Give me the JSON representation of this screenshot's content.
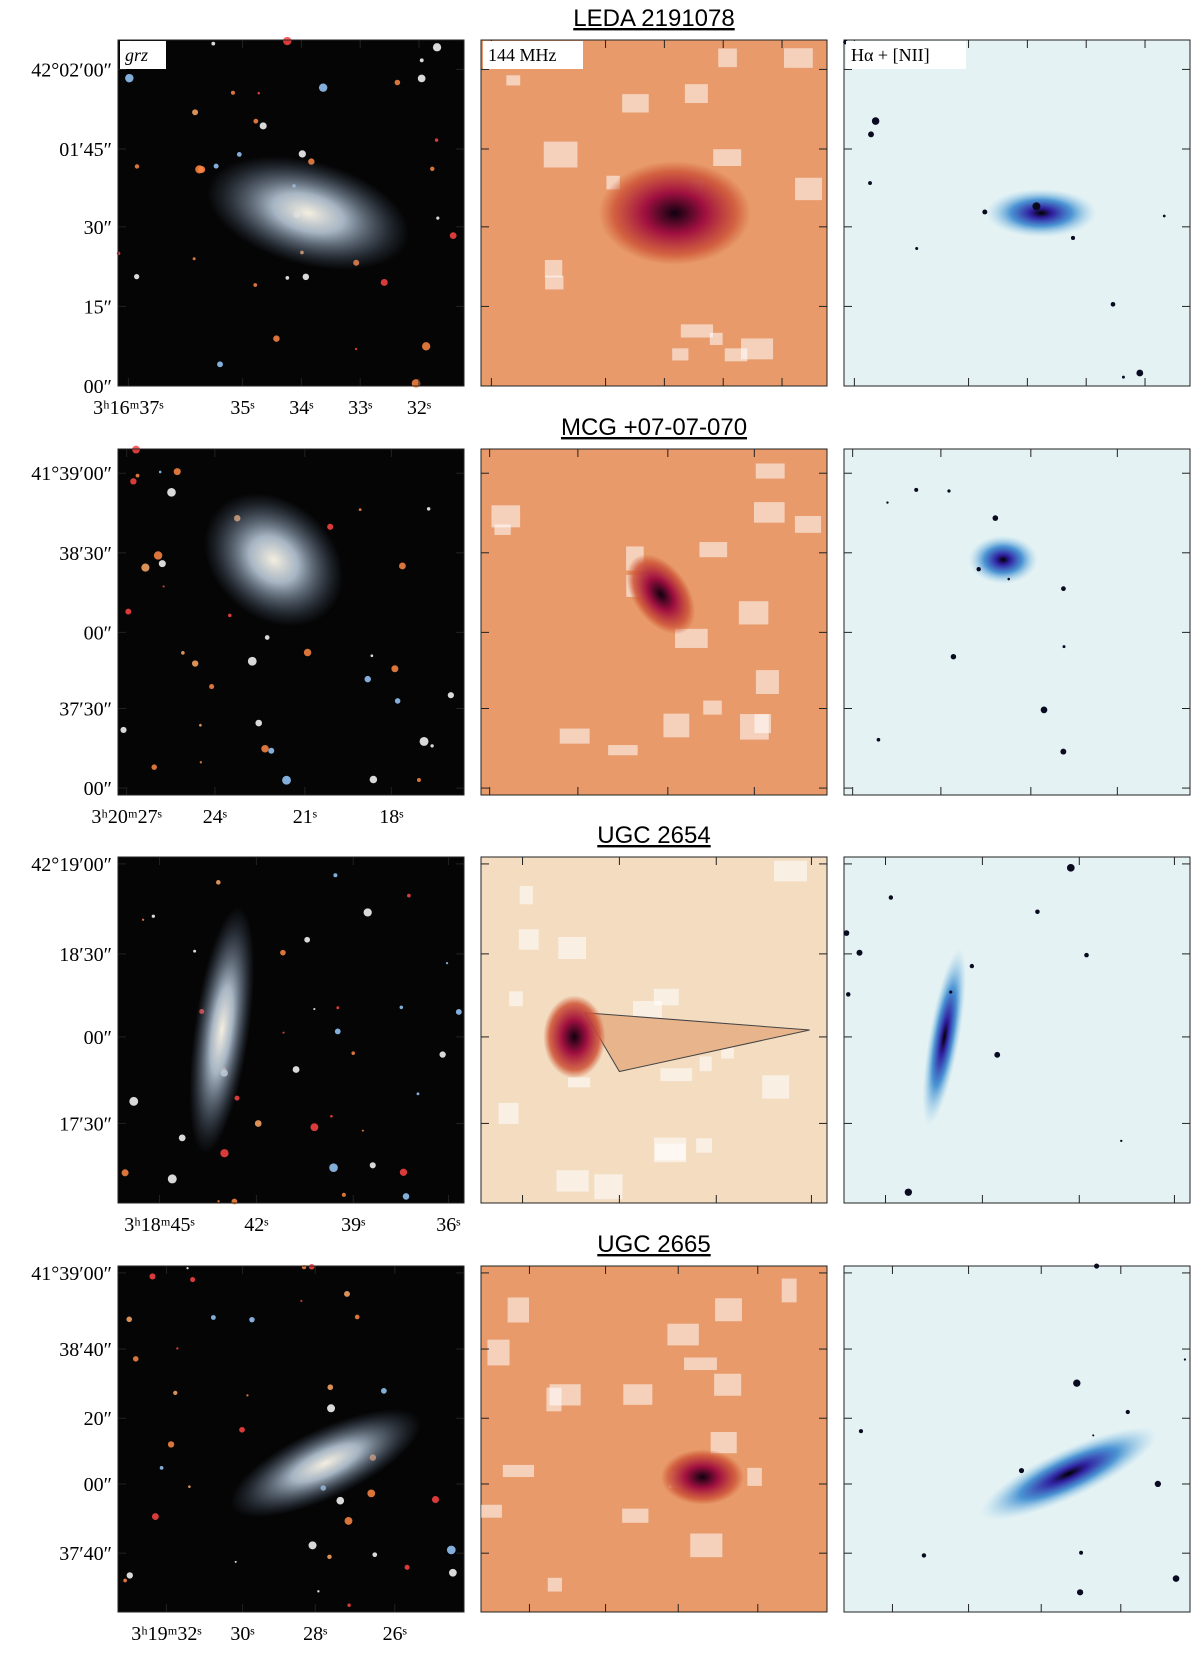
{
  "panel_labels": [
    "grz",
    "144 MHz",
    "Hα + [NII]"
  ],
  "rows": [
    {
      "title": "LEDA 2191078",
      "y_ticks": [
        "42°02′00″",
        "01′45″",
        "30″",
        "15″",
        "00″"
      ],
      "x_ticks": [
        "3ʰ16ᵐ37ˢ",
        "35ˢ",
        "34ˢ",
        "33ˢ",
        "32ˢ"
      ]
    },
    {
      "title": "MCG +07-07-070",
      "y_ticks": [
        "41°39′00″",
        "38′30″",
        "00″",
        "37′30″",
        "00″"
      ],
      "x_ticks": [
        "3ʰ20ᵐ27ˢ",
        "24ˢ",
        "21ˢ",
        "18ˢ"
      ]
    },
    {
      "title": "UGC 2654",
      "y_ticks": [
        "42°19′00″",
        "18′30″",
        "00″",
        "17′30″"
      ],
      "x_ticks": [
        "3ʰ18ᵐ45ˢ",
        "42ˢ",
        "39ˢ",
        "36ˢ"
      ]
    },
    {
      "title": "UGC 2665",
      "y_ticks": [
        "41°39′00″",
        "38′40″",
        "20″",
        "00″",
        "37′40″"
      ],
      "x_ticks": [
        "3ʰ19ᵐ32ˢ",
        "30ˢ",
        "28ˢ",
        "26ˢ"
      ]
    }
  ]
}
